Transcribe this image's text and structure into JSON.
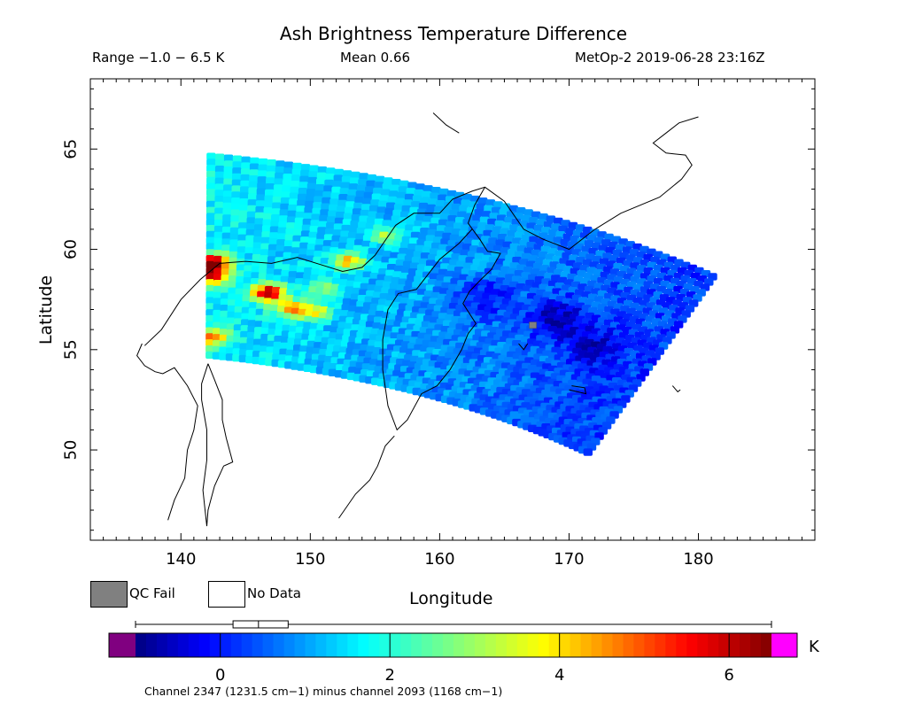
{
  "header": {
    "title": "Ash Brightness Temperature Difference",
    "range": "Range −1.0 − 6.5 K",
    "mean": "Mean 0.66",
    "satellite_time": "MetOp-2 2019-06-28 23:16Z"
  },
  "legend": {
    "qc_fail": "QC Fail",
    "no_data": "No Data",
    "qc_color": "#808080",
    "no_data_color": "#ffffff"
  },
  "colorbar": {
    "unit": "K",
    "min": -1.0,
    "max": 6.5,
    "ticks": [
      0,
      2,
      4,
      6
    ],
    "tick_labels": [
      "0",
      "2",
      "4",
      "6"
    ],
    "below_color": "#800080",
    "above_color": "#ff00ff",
    "boxplot": {
      "min": -1.0,
      "q1": 0.15,
      "median": 0.45,
      "q3": 0.8,
      "max": 6.5
    },
    "caption": "Channel 2347 (1231.5 cm−1) minus channel 2093 (1168 cm−1)"
  },
  "chart_data": {
    "type": "heatmap",
    "title": "Ash Brightness Temperature Difference",
    "xlabel": "Longitude",
    "ylabel": "Latitude",
    "xlim": [
      133,
      189
    ],
    "ylim": [
      45.5,
      68.5
    ],
    "xticks": [
      140,
      150,
      160,
      170,
      180
    ],
    "xtick_labels": [
      "140",
      "150",
      "160",
      "170",
      "180"
    ],
    "yticks": [
      50,
      55,
      60,
      65
    ],
    "ytick_labels": [
      "50",
      "55",
      "60",
      "65"
    ],
    "value_unit": "K",
    "value_range": [
      -1.0,
      6.5
    ],
    "mean": 0.66,
    "swath_corners": {
      "top_left": [
        142,
        64.8
      ],
      "top_right": [
        181.5,
        58.7
      ],
      "bottom_right": [
        171.5,
        49.7
      ],
      "bottom_left": [
        142,
        54.6
      ]
    },
    "hotspots": [
      {
        "lon": 142.5,
        "lat": 59.3,
        "value": 6.4
      },
      {
        "lon": 142.5,
        "lat": 58.6,
        "value": 5.2
      },
      {
        "lon": 146.8,
        "lat": 57.8,
        "value": 6.2
      },
      {
        "lon": 148.5,
        "lat": 57.0,
        "value": 4.3
      },
      {
        "lon": 150.5,
        "lat": 56.8,
        "value": 4.0
      },
      {
        "lon": 153.0,
        "lat": 59.4,
        "value": 4.5
      },
      {
        "lon": 142.5,
        "lat": 55.6,
        "value": 4.6
      },
      {
        "lon": 156.0,
        "lat": 60.7,
        "value": 3.4
      },
      {
        "lon": 151.0,
        "lat": 58.0,
        "value": 3.0
      }
    ],
    "coldspots": [
      {
        "lon": 169.0,
        "lat": 56.5,
        "value": -0.9
      },
      {
        "lon": 163.5,
        "lat": 57.5,
        "value": -0.6
      },
      {
        "lon": 172.0,
        "lat": 55.0,
        "value": -0.5
      }
    ],
    "qc_fail_points": [
      {
        "lon": 167.2,
        "lat": 56.2
      }
    ]
  }
}
